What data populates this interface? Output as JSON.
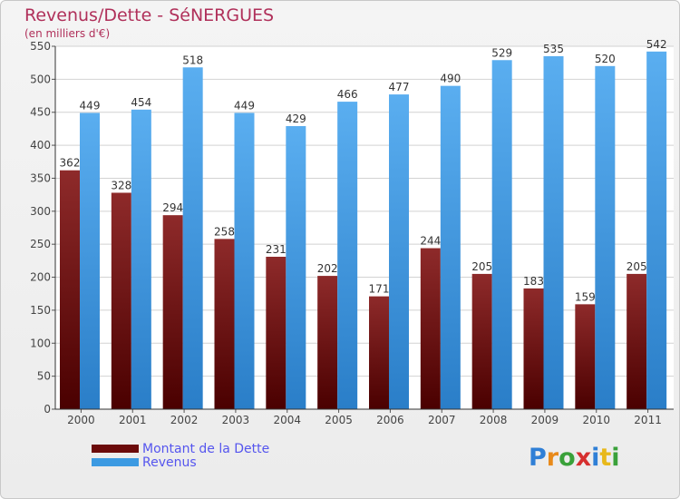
{
  "colors": {
    "dette": "#6b0a0a",
    "revenus": "#3c9ae2",
    "title": "#b0305a",
    "legend_text": "#5555ee"
  },
  "chart_data": {
    "type": "bar",
    "title": "Revenus/Dette - SéNERGUES",
    "subtitle": "(en milliers d'€)",
    "categories": [
      "2000",
      "2001",
      "2002",
      "2003",
      "2004",
      "2005",
      "2006",
      "2007",
      "2008",
      "2009",
      "2010",
      "2011"
    ],
    "series": [
      {
        "name": "Montant de la Dette",
        "values": [
          362,
          328,
          294,
          258,
          231,
          202,
          171,
          244,
          205,
          183,
          159,
          205
        ]
      },
      {
        "name": "Revenus",
        "values": [
          449,
          454,
          518,
          449,
          429,
          466,
          477,
          490,
          529,
          535,
          520,
          542
        ]
      }
    ],
    "ylim": [
      0,
      550
    ],
    "yticks": [
      0,
      50,
      100,
      150,
      200,
      250,
      300,
      350,
      400,
      450,
      500,
      550
    ],
    "grid": true,
    "legend": "bottom-left"
  },
  "logo": {
    "letters": [
      "P",
      "r",
      "o",
      "x",
      "i",
      "t",
      "i"
    ],
    "colors": [
      "#2f7fd6",
      "#e88a1a",
      "#3aa13a",
      "#d62f2f",
      "#2f7fd6",
      "#e8b81a",
      "#3aa13a"
    ]
  }
}
